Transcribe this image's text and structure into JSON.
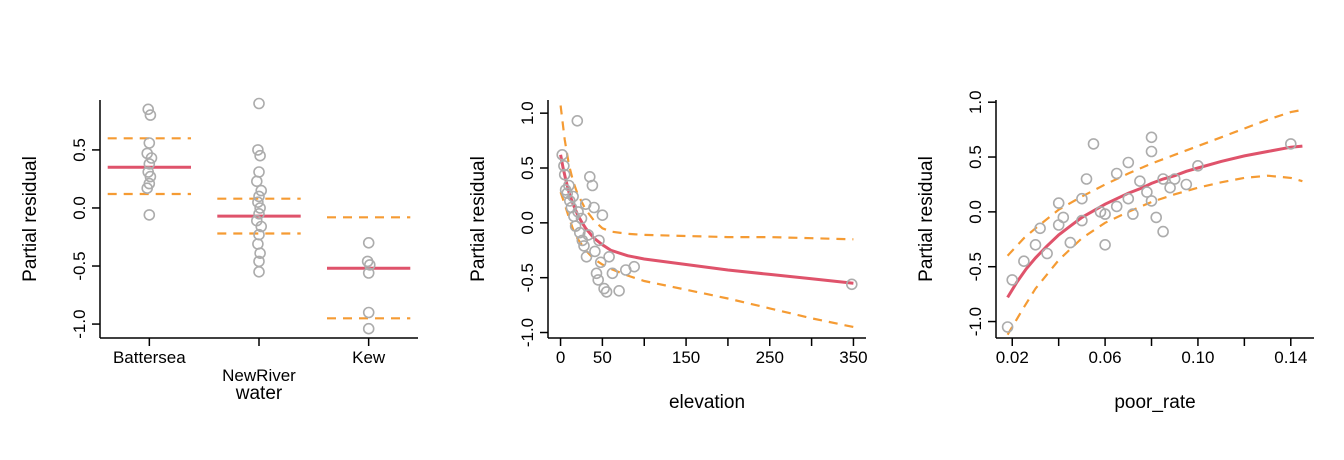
{
  "palette": {
    "fit_line": "#DF536B",
    "confidence_dashed": "#F59B33",
    "points_stroke": "#ACACAC",
    "axis": "#000000",
    "background": "#FFFFFF"
  },
  "chart_data": [
    {
      "type": "scatter",
      "subtype": "factor_term",
      "title": "",
      "xlabel": "water",
      "ylabel": "Partial residual",
      "xlim": [
        0.55,
        3.45
      ],
      "ylim": [
        -1.12,
        0.93
      ],
      "xticks": {
        "values": [
          1,
          2,
          3
        ],
        "labels": [
          "Battersea",
          "NewRiver",
          "Kew"
        ],
        "label_rows": [
          0,
          1,
          0
        ]
      },
      "yticks": {
        "values": [
          -1.0,
          -0.5,
          0.0,
          0.5
        ],
        "labels": [
          "-1.0",
          "-0.5",
          "0.0",
          "0.5"
        ]
      },
      "segment_half_width": 0.38,
      "terms": [
        {
          "level": "Battersea",
          "x": 1,
          "fit": 0.35,
          "upper": 0.6,
          "lower": 0.12
        },
        {
          "level": "NewRiver",
          "x": 2,
          "fit": -0.07,
          "upper": 0.08,
          "lower": -0.22
        },
        {
          "level": "Kew",
          "x": 3,
          "fit": -0.52,
          "upper": -0.08,
          "lower": -0.95
        }
      ],
      "points": [
        [
          0.99,
          0.85
        ],
        [
          1.01,
          0.8
        ],
        [
          1.0,
          0.56
        ],
        [
          0.98,
          0.47
        ],
        [
          1.02,
          0.43
        ],
        [
          1.0,
          0.38
        ],
        [
          0.99,
          0.31
        ],
        [
          1.01,
          0.27
        ],
        [
          1.0,
          0.21
        ],
        [
          0.98,
          0.17
        ],
        [
          1.0,
          -0.06
        ],
        [
          2.0,
          0.9
        ],
        [
          1.99,
          0.5
        ],
        [
          2.01,
          0.45
        ],
        [
          2.0,
          0.31
        ],
        [
          1.98,
          0.23
        ],
        [
          2.02,
          0.15
        ],
        [
          2.0,
          0.1
        ],
        [
          1.99,
          0.05
        ],
        [
          2.01,
          0.0
        ],
        [
          2.0,
          -0.05
        ],
        [
          1.98,
          -0.11
        ],
        [
          2.02,
          -0.16
        ],
        [
          2.0,
          -0.23
        ],
        [
          1.99,
          -0.31
        ],
        [
          2.01,
          -0.39
        ],
        [
          2.0,
          -0.46
        ],
        [
          2.0,
          -0.55
        ],
        [
          3.0,
          -0.3
        ],
        [
          2.99,
          -0.46
        ],
        [
          3.01,
          -0.49
        ],
        [
          3.0,
          -0.56
        ],
        [
          3.0,
          -0.9
        ],
        [
          3.0,
          -1.04
        ]
      ]
    },
    {
      "type": "scatter",
      "subtype": "smooth_term",
      "title": "",
      "xlabel": "elevation",
      "ylabel": "Partial residual",
      "xlim": [
        -15,
        365
      ],
      "ylim": [
        -1.05,
        1.12
      ],
      "xticks": {
        "values": [
          0,
          50,
          100,
          150,
          200,
          250,
          300,
          350
        ],
        "labels": [
          "0",
          "50",
          "",
          "150",
          "",
          "250",
          "",
          "350"
        ]
      },
      "yticks": {
        "values": [
          -1.0,
          -0.5,
          0.0,
          0.5,
          1.0
        ],
        "labels": [
          "-1.0",
          "-0.5",
          "0.0",
          "0.5",
          "1.0"
        ]
      },
      "fit": [
        [
          0,
          0.62
        ],
        [
          3,
          0.5
        ],
        [
          6,
          0.4
        ],
        [
          10,
          0.28
        ],
        [
          15,
          0.17
        ],
        [
          20,
          0.08
        ],
        [
          25,
          0.01
        ],
        [
          30,
          -0.05
        ],
        [
          40,
          -0.14
        ],
        [
          50,
          -0.2
        ],
        [
          60,
          -0.25
        ],
        [
          80,
          -0.3
        ],
        [
          100,
          -0.33
        ],
        [
          150,
          -0.38
        ],
        [
          200,
          -0.43
        ],
        [
          250,
          -0.47
        ],
        [
          300,
          -0.51
        ],
        [
          350,
          -0.55
        ]
      ],
      "upper": [
        [
          0,
          1.07
        ],
        [
          5,
          0.76
        ],
        [
          10,
          0.53
        ],
        [
          15,
          0.38
        ],
        [
          20,
          0.27
        ],
        [
          30,
          0.12
        ],
        [
          40,
          0.02
        ],
        [
          50,
          -0.05
        ],
        [
          60,
          -0.08
        ],
        [
          80,
          -0.1
        ],
        [
          100,
          -0.11
        ],
        [
          150,
          -0.12
        ],
        [
          200,
          -0.13
        ],
        [
          250,
          -0.13
        ],
        [
          300,
          -0.14
        ],
        [
          350,
          -0.15
        ]
      ],
      "lower": [
        [
          0,
          0.28
        ],
        [
          5,
          0.17
        ],
        [
          10,
          0.05
        ],
        [
          15,
          -0.06
        ],
        [
          20,
          -0.14
        ],
        [
          30,
          -0.25
        ],
        [
          40,
          -0.33
        ],
        [
          50,
          -0.38
        ],
        [
          60,
          -0.42
        ],
        [
          80,
          -0.48
        ],
        [
          100,
          -0.53
        ],
        [
          150,
          -0.61
        ],
        [
          200,
          -0.69
        ],
        [
          250,
          -0.78
        ],
        [
          300,
          -0.87
        ],
        [
          350,
          -0.95
        ]
      ],
      "points": [
        [
          2,
          0.62
        ],
        [
          4,
          0.52
        ],
        [
          5,
          0.44
        ],
        [
          6,
          0.3
        ],
        [
          8,
          0.27
        ],
        [
          10,
          0.34
        ],
        [
          11,
          0.2
        ],
        [
          13,
          0.14
        ],
        [
          15,
          0.24
        ],
        [
          16,
          0.06
        ],
        [
          18,
          -0.03
        ],
        [
          20,
          0.93
        ],
        [
          21,
          0.1
        ],
        [
          23,
          -0.09
        ],
        [
          25,
          0.04
        ],
        [
          26,
          -0.16
        ],
        [
          28,
          -0.21
        ],
        [
          30,
          0.17
        ],
        [
          31,
          -0.31
        ],
        [
          33,
          -0.11
        ],
        [
          35,
          0.42
        ],
        [
          38,
          0.34
        ],
        [
          40,
          0.14
        ],
        [
          41,
          -0.26
        ],
        [
          43,
          -0.46
        ],
        [
          45,
          -0.52
        ],
        [
          46,
          -0.16
        ],
        [
          48,
          -0.36
        ],
        [
          50,
          0.07
        ],
        [
          52,
          -0.6
        ],
        [
          55,
          -0.63
        ],
        [
          58,
          -0.31
        ],
        [
          62,
          -0.46
        ],
        [
          70,
          -0.62
        ],
        [
          78,
          -0.43
        ],
        [
          88,
          -0.4
        ],
        [
          348,
          -0.56
        ]
      ]
    },
    {
      "type": "scatter",
      "subtype": "smooth_term",
      "title": "",
      "xlabel": "poor_rate",
      "ylabel": "Partial residual",
      "xlim": [
        0.013,
        0.15
      ],
      "ylim": [
        -1.15,
        1.02
      ],
      "xticks": {
        "values": [
          0.02,
          0.04,
          0.06,
          0.08,
          0.1,
          0.12,
          0.14
        ],
        "labels": [
          "0.02",
          "",
          "0.06",
          "",
          "0.10",
          "",
          "0.14"
        ]
      },
      "yticks": {
        "values": [
          -1.0,
          -0.5,
          0.0,
          0.5,
          1.0
        ],
        "labels": [
          "-1.0",
          "-0.5",
          "0.0",
          "0.5",
          "1.0"
        ]
      },
      "fit": [
        [
          0.018,
          -0.78
        ],
        [
          0.022,
          -0.64
        ],
        [
          0.026,
          -0.52
        ],
        [
          0.03,
          -0.42
        ],
        [
          0.035,
          -0.31
        ],
        [
          0.04,
          -0.21
        ],
        [
          0.045,
          -0.13
        ],
        [
          0.05,
          -0.05
        ],
        [
          0.055,
          0.01
        ],
        [
          0.06,
          0.07
        ],
        [
          0.065,
          0.12
        ],
        [
          0.07,
          0.17
        ],
        [
          0.075,
          0.21
        ],
        [
          0.08,
          0.26
        ],
        [
          0.085,
          0.3
        ],
        [
          0.09,
          0.33
        ],
        [
          0.095,
          0.37
        ],
        [
          0.1,
          0.4
        ],
        [
          0.11,
          0.46
        ],
        [
          0.12,
          0.51
        ],
        [
          0.13,
          0.55
        ],
        [
          0.14,
          0.59
        ],
        [
          0.145,
          0.6
        ]
      ],
      "upper": [
        [
          0.018,
          -0.4
        ],
        [
          0.025,
          -0.24
        ],
        [
          0.03,
          -0.15
        ],
        [
          0.04,
          0.02
        ],
        [
          0.05,
          0.14
        ],
        [
          0.06,
          0.25
        ],
        [
          0.07,
          0.35
        ],
        [
          0.08,
          0.44
        ],
        [
          0.09,
          0.52
        ],
        [
          0.1,
          0.6
        ],
        [
          0.11,
          0.68
        ],
        [
          0.12,
          0.76
        ],
        [
          0.13,
          0.84
        ],
        [
          0.14,
          0.91
        ],
        [
          0.145,
          0.93
        ]
      ],
      "lower": [
        [
          0.018,
          -1.12
        ],
        [
          0.025,
          -0.87
        ],
        [
          0.03,
          -0.7
        ],
        [
          0.04,
          -0.44
        ],
        [
          0.05,
          -0.24
        ],
        [
          0.06,
          -0.1
        ],
        [
          0.07,
          0.0
        ],
        [
          0.08,
          0.09
        ],
        [
          0.09,
          0.16
        ],
        [
          0.1,
          0.22
        ],
        [
          0.11,
          0.27
        ],
        [
          0.12,
          0.31
        ],
        [
          0.13,
          0.33
        ],
        [
          0.14,
          0.31
        ],
        [
          0.145,
          0.28
        ]
      ],
      "points": [
        [
          0.018,
          -1.05
        ],
        [
          0.02,
          -0.62
        ],
        [
          0.025,
          -0.45
        ],
        [
          0.03,
          -0.3
        ],
        [
          0.032,
          -0.15
        ],
        [
          0.035,
          -0.38
        ],
        [
          0.04,
          0.08
        ],
        [
          0.04,
          -0.12
        ],
        [
          0.042,
          -0.05
        ],
        [
          0.045,
          -0.28
        ],
        [
          0.05,
          0.12
        ],
        [
          0.05,
          -0.08
        ],
        [
          0.052,
          0.3
        ],
        [
          0.055,
          0.62
        ],
        [
          0.058,
          0.0
        ],
        [
          0.06,
          -0.02
        ],
        [
          0.06,
          -0.3
        ],
        [
          0.065,
          0.05
        ],
        [
          0.065,
          0.35
        ],
        [
          0.07,
          0.45
        ],
        [
          0.07,
          0.12
        ],
        [
          0.072,
          -0.02
        ],
        [
          0.075,
          0.28
        ],
        [
          0.078,
          0.18
        ],
        [
          0.08,
          0.68
        ],
        [
          0.08,
          0.55
        ],
        [
          0.08,
          0.1
        ],
        [
          0.082,
          -0.05
        ],
        [
          0.085,
          0.3
        ],
        [
          0.085,
          -0.18
        ],
        [
          0.088,
          0.22
        ],
        [
          0.09,
          0.3
        ],
        [
          0.095,
          0.25
        ],
        [
          0.1,
          0.42
        ],
        [
          0.14,
          0.62
        ]
      ]
    }
  ]
}
